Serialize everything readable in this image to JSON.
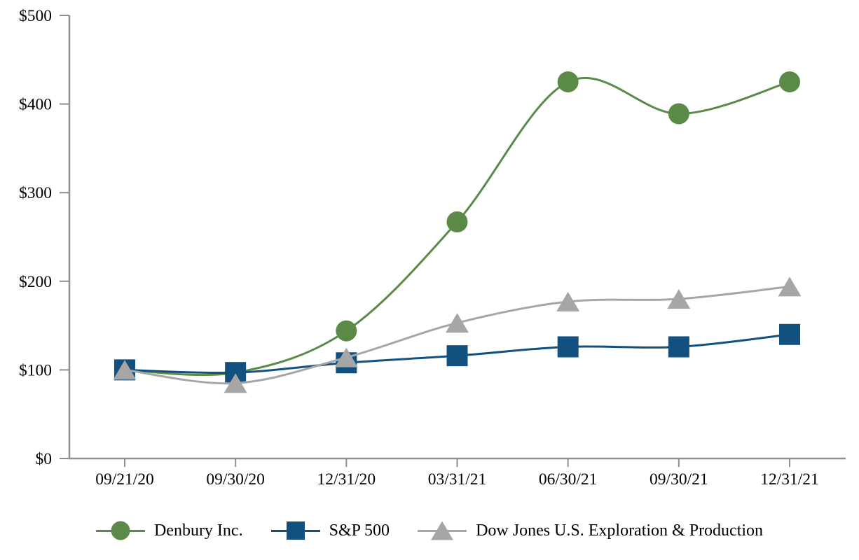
{
  "chart_data": {
    "type": "line",
    "title": "",
    "xlabel": "",
    "ylabel": "",
    "x": [
      "09/21/20",
      "09/30/20",
      "12/31/20",
      "03/31/21",
      "06/30/21",
      "09/30/21",
      "12/31/21"
    ],
    "ylim": [
      0,
      500
    ],
    "y_ticks": [
      0,
      100,
      200,
      300,
      400,
      500
    ],
    "y_tick_labels": [
      "$0",
      "$100",
      "$200",
      "$300",
      "$400",
      "$500"
    ],
    "grid": false,
    "legend_position": "bottom",
    "axis_color": "#8f8f8f",
    "text_color": "#000000",
    "series": [
      {
        "name": "Denbury Inc.",
        "marker": "circle",
        "color": "#5b8a48",
        "values": [
          100,
          97,
          144,
          267,
          425,
          389,
          425
        ]
      },
      {
        "name": "S&P 500",
        "marker": "square",
        "color": "#11507f",
        "values": [
          100,
          97,
          108,
          116,
          126,
          126,
          140
        ]
      },
      {
        "name": "Dow Jones U.S. Exploration & Production",
        "marker": "triangle",
        "color": "#a6a6a6",
        "values": [
          100,
          85,
          114,
          153,
          177,
          180,
          194
        ]
      }
    ]
  }
}
